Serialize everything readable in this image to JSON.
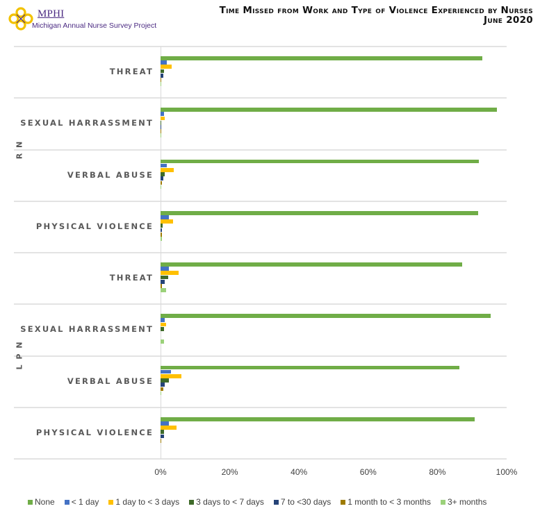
{
  "header": {
    "logo_name": "MPHI",
    "logo_subtitle": "Michigan Annual Nurse Survey Project",
    "title_line1": "Time Missed from Work and Type of Violence Experienced by Nurses",
    "title_line2": "June 2020"
  },
  "colors": {
    "None": "#70ad47",
    "< 1 day": "#4472c4",
    "1 day to < 3 days": "#ffc000",
    "3 days to < 7 days": "#3f6b2a",
    "7 to <30 days": "#264478",
    "1 month to < 3 months": "#9e7b00",
    "3+ months": "#9bd17a"
  },
  "chart_data": {
    "type": "bar",
    "orientation": "horizontal",
    "title": "Time Missed from Work and Type of Violence Experienced by Nurses — June 2020",
    "xlabel": "",
    "ylabel": "",
    "xlim": [
      0,
      100
    ],
    "x_ticks": [
      "0%",
      "20%",
      "40%",
      "60%",
      "80%",
      "100%"
    ],
    "grid": "horizontal separators between categories",
    "legend_position": "bottom",
    "groups": [
      "RN",
      "LPN"
    ],
    "categories": [
      {
        "group": "RN",
        "label": "THREAT"
      },
      {
        "group": "RN",
        "label": "SEXUAL HARRASSMENT"
      },
      {
        "group": "RN",
        "label": "VERBAL ABUSE"
      },
      {
        "group": "RN",
        "label": "PHYSICAL VIOLENCE"
      },
      {
        "group": "LPN",
        "label": "THREAT"
      },
      {
        "group": "LPN",
        "label": "SEXUAL HARRASSMENT"
      },
      {
        "group": "LPN",
        "label": "VERBAL ABUSE"
      },
      {
        "group": "LPN",
        "label": "PHYSICAL VIOLENCE"
      }
    ],
    "series": [
      {
        "name": "None",
        "values": [
          93.0,
          97.2,
          92.0,
          91.8,
          87.1,
          95.4,
          86.3,
          90.8
        ]
      },
      {
        "name": "< 1 day",
        "values": [
          1.8,
          1.0,
          1.8,
          2.4,
          2.4,
          1.2,
          3.0,
          2.4
        ]
      },
      {
        "name": "1 day to < 3 days",
        "values": [
          3.2,
          1.2,
          3.8,
          3.6,
          5.2,
          1.6,
          6.0,
          4.6
        ]
      },
      {
        "name": "3 days to < 7 days",
        "values": [
          1.0,
          0.2,
          1.2,
          0.6,
          2.2,
          1.0,
          2.4,
          1.0
        ]
      },
      {
        "name": "7 to <30 days",
        "values": [
          0.8,
          0.3,
          0.8,
          0.4,
          1.2,
          0.0,
          1.2,
          1.0
        ]
      },
      {
        "name": "1 month to < 3 months",
        "values": [
          0.2,
          0.3,
          0.4,
          0.4,
          0.4,
          0.0,
          0.8,
          0.2
        ]
      },
      {
        "name": "3+ months",
        "values": [
          0.2,
          0.2,
          0.2,
          0.4,
          1.6,
          1.0,
          0.2,
          0.0
        ]
      }
    ]
  },
  "legend": [
    {
      "label": "None"
    },
    {
      "label": "< 1 day"
    },
    {
      "label": "1 day to < 3 days"
    },
    {
      "label": "3 days to < 7 days"
    },
    {
      "label": "7 to <30 days"
    },
    {
      "label": "1 month to < 3 months"
    },
    {
      "label": "3+ months"
    }
  ]
}
